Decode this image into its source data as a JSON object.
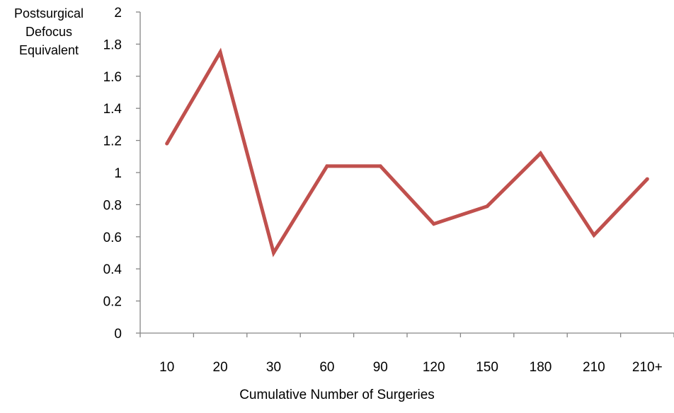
{
  "chart_data": {
    "type": "line",
    "title": "",
    "ylabel_lines": [
      "Postsurgical",
      "Defocus",
      "Equivalent"
    ],
    "xlabel": "Cumulative Number of Surgeries",
    "categories": [
      "10",
      "20",
      "30",
      "60",
      "90",
      "120",
      "150",
      "180",
      "210",
      "210+"
    ],
    "series": [
      {
        "values": [
          1.18,
          1.75,
          0.5,
          1.04,
          1.04,
          0.68,
          0.79,
          1.12,
          0.61,
          0.96
        ],
        "color": "#c0504d"
      }
    ],
    "ylim": [
      0,
      2
    ],
    "yticks": [
      "0",
      "0.2",
      "0.4",
      "0.6",
      "0.8",
      "1",
      "1.2",
      "1.4",
      "1.6",
      "1.8",
      "2"
    ],
    "grid": false,
    "legend": "none"
  }
}
